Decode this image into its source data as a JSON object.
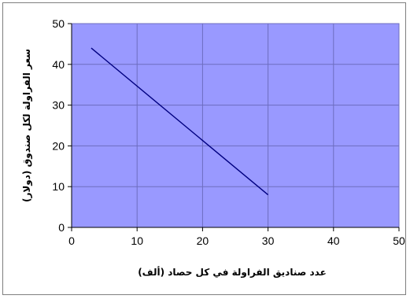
{
  "chart_data": {
    "type": "line",
    "title": "",
    "xlabel": "عدد صناديق الفراولة في كل حصاد (ألف)",
    "ylabel": "سعر الفراولة لكل صندوق (دولار)",
    "xlim": [
      0,
      50
    ],
    "ylim": [
      0,
      50
    ],
    "xticks": [
      0,
      10,
      20,
      30,
      40,
      50
    ],
    "yticks": [
      0,
      10,
      20,
      30,
      40,
      50
    ],
    "grid": true,
    "legend": "none",
    "series": [
      {
        "x": [
          3,
          30
        ],
        "y": [
          44,
          8
        ]
      }
    ],
    "colors": {
      "plot_background": "#9999ff",
      "grid": "#6d6dbf",
      "line": "#000080",
      "axes": "#000000"
    }
  }
}
